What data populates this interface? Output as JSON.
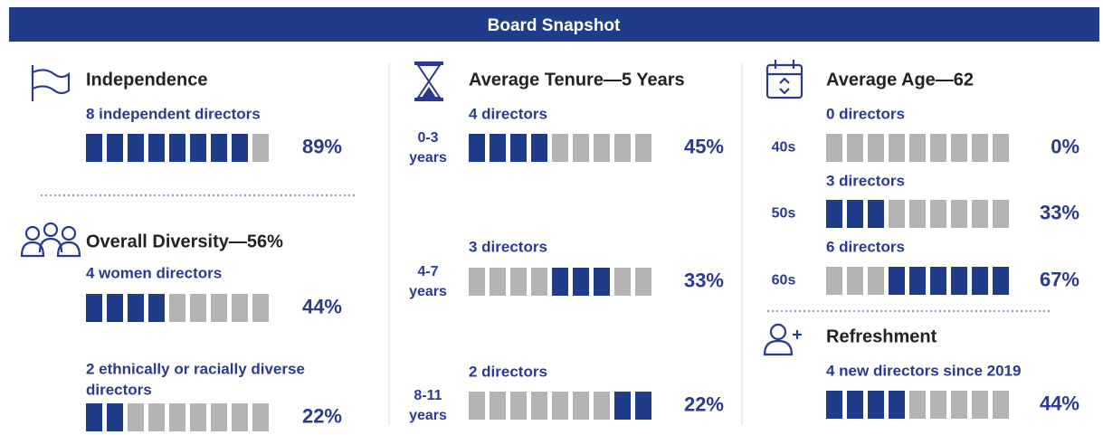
{
  "header": {
    "title": "Board Snapshot"
  },
  "independence": {
    "heading": "Independence",
    "bars": [
      {
        "label": "8 independent directors",
        "count": 8,
        "percent": "89%"
      }
    ]
  },
  "diversity": {
    "heading": "Overall Diversity—56%",
    "bars": [
      {
        "label": "4 women directors",
        "count": 4,
        "percent": "44%"
      },
      {
        "label": "2 ethnically or racially diverse",
        "label2": "directors",
        "count": 2,
        "percent": "22%"
      }
    ]
  },
  "tenure": {
    "heading": "Average Tenure—5 Years",
    "rows": [
      {
        "range": "0-3",
        "unit": "years",
        "label": "4 directors",
        "count": 4,
        "percent": "45%"
      },
      {
        "range": "4-7",
        "unit": "years",
        "label": "3 directors",
        "count": 3,
        "percent": "33%"
      },
      {
        "range": "8-11",
        "unit": "years",
        "label": "2 directors",
        "count": 2,
        "percent": "22%"
      }
    ]
  },
  "age": {
    "heading": "Average Age—62",
    "rows": [
      {
        "range": "40s",
        "label": "0 directors",
        "count": 0,
        "percent": "0%"
      },
      {
        "range": "50s",
        "label": "3 directors",
        "count": 3,
        "percent": "33%"
      },
      {
        "range": "60s",
        "label": "6 directors",
        "count": 6,
        "percent": "67%"
      }
    ]
  },
  "refreshment": {
    "heading": "Refreshment",
    "bars": [
      {
        "label": "4 new directors since 2019",
        "count": 4,
        "percent": "44%"
      }
    ]
  }
}
